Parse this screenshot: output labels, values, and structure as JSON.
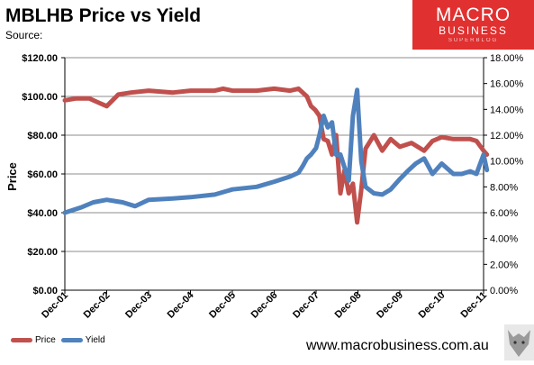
{
  "header": {
    "title": "MBLHB Price vs Yield",
    "subtitle": "Source:"
  },
  "logo": {
    "line1": "MACRO",
    "line2": "BUSINESS",
    "line3": "SUPERBLOG"
  },
  "footer": {
    "website": "www.macrobusiness.com.au"
  },
  "colors": {
    "price": "#c0504d",
    "yield": "#4f81bd",
    "accent": "#e03030"
  },
  "chart_data": {
    "type": "line",
    "title": "MBLHB Price vs Yield",
    "ylabel": "Price",
    "ylim": [
      0,
      120
    ],
    "y2lim": [
      0,
      18
    ],
    "y_ticks": [
      "$0.00",
      "$20.00",
      "$40.00",
      "$60.00",
      "$80.00",
      "$100.00",
      "$120.00"
    ],
    "y2_ticks": [
      "0.00%",
      "2.00%",
      "4.00%",
      "6.00%",
      "8.00%",
      "10.00%",
      "12.00%",
      "14.00%",
      "16.00%",
      "18.00%"
    ],
    "x_ticks": [
      "Dec-01",
      "Dec-02",
      "Dec-03",
      "Dec-04",
      "Dec-05",
      "Dec-06",
      "Dec-07",
      "Dec-08",
      "Dec-09",
      "Dec-10",
      "Dec-11"
    ],
    "grid": true,
    "legend": "bottom-left",
    "series": [
      {
        "name": "Price",
        "axis": "left",
        "x": [
          2001.92,
          2002.2,
          2002.5,
          2002.7,
          2002.92,
          2003.2,
          2003.5,
          2003.92,
          2004.5,
          2004.92,
          2005.5,
          2005.7,
          2005.92,
          2006.5,
          2006.92,
          2007.3,
          2007.5,
          2007.6,
          2007.7,
          2007.8,
          2007.9,
          2008.0,
          2008.1,
          2008.2,
          2008.3,
          2008.4,
          2008.5,
          2008.6,
          2008.7,
          2008.8,
          2008.9,
          2009.0,
          2009.1,
          2009.3,
          2009.5,
          2009.7,
          2009.92,
          2010.2,
          2010.5,
          2010.7,
          2010.92,
          2011.2,
          2011.4,
          2011.6,
          2011.75,
          2011.92,
          2012.0
        ],
        "y": [
          98,
          99,
          99,
          97,
          95,
          101,
          102,
          103,
          102,
          103,
          103,
          104,
          103,
          103,
          104,
          103,
          104,
          102,
          100,
          95,
          93,
          90,
          78,
          77,
          70,
          80,
          50,
          62,
          50,
          55,
          35,
          52,
          73,
          80,
          72,
          78,
          74,
          76,
          72,
          77,
          79,
          78,
          78,
          78,
          77,
          72,
          70
        ]
      },
      {
        "name": "Yield",
        "axis": "right",
        "x": [
          2001.92,
          2002.3,
          2002.6,
          2002.92,
          2003.3,
          2003.6,
          2003.92,
          2004.5,
          2004.92,
          2005.5,
          2005.92,
          2006.5,
          2006.92,
          2007.3,
          2007.5,
          2007.6,
          2007.7,
          2007.8,
          2007.92,
          2008.0,
          2008.1,
          2008.2,
          2008.3,
          2008.4,
          2008.5,
          2008.6,
          2008.7,
          2008.8,
          2008.9,
          2009.0,
          2009.1,
          2009.3,
          2009.5,
          2009.7,
          2009.92,
          2010.1,
          2010.3,
          2010.5,
          2010.7,
          2010.92,
          2011.2,
          2011.4,
          2011.6,
          2011.75,
          2011.92,
          2012.0
        ],
        "y": [
          6.0,
          6.4,
          6.8,
          7.0,
          6.8,
          6.5,
          7.0,
          7.1,
          7.2,
          7.4,
          7.8,
          8.0,
          8.4,
          8.8,
          9.1,
          9.6,
          10.2,
          10.5,
          11.0,
          12.0,
          13.5,
          12.6,
          13.0,
          10.5,
          10.5,
          9.5,
          8.5,
          13.5,
          15.5,
          10.0,
          8.0,
          7.5,
          7.4,
          7.8,
          8.6,
          9.2,
          9.8,
          10.2,
          9.0,
          9.8,
          9.0,
          9.0,
          9.2,
          9.0,
          10.5,
          9.3
        ]
      }
    ]
  }
}
